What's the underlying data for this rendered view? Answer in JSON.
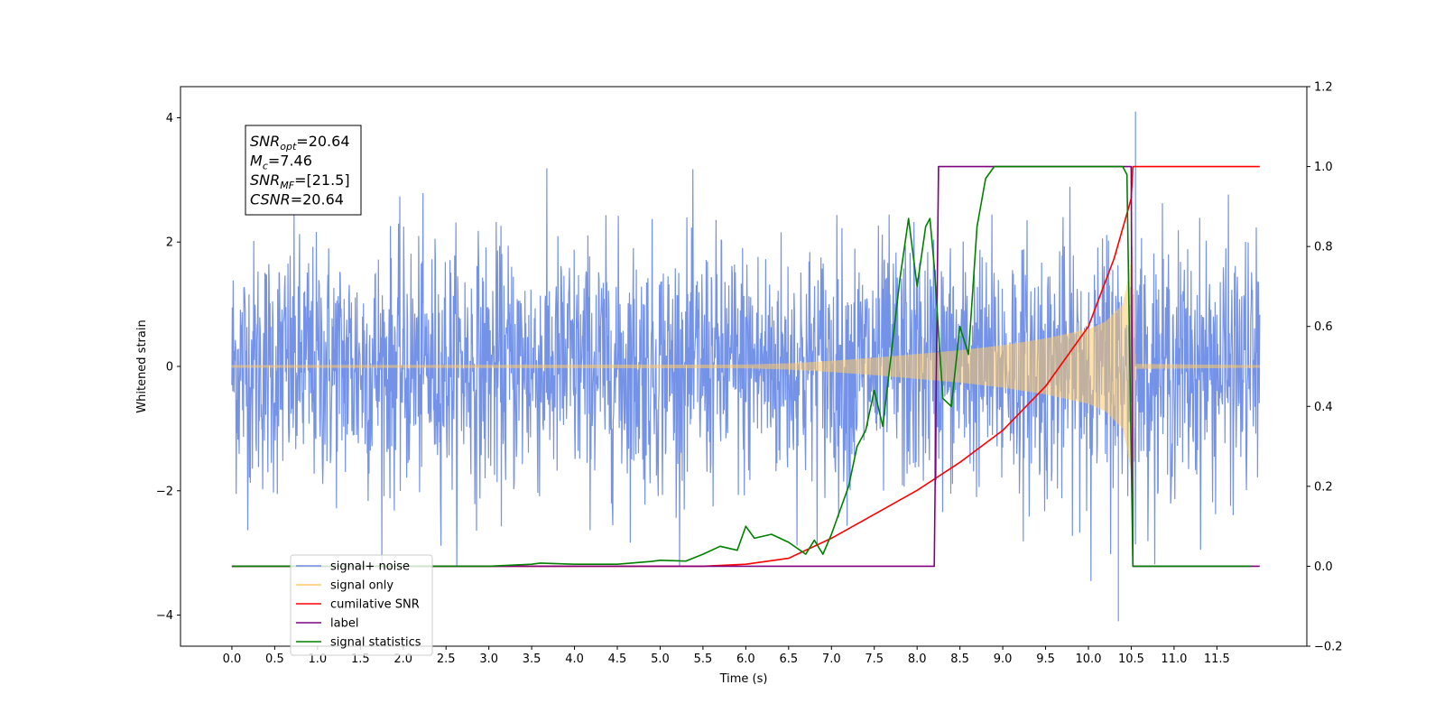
{
  "chart_data": {
    "type": "line",
    "xlabel": "Time (s)",
    "ylabel": "Whitened strain",
    "ylabel_right": "",
    "xlim": [
      -0.6,
      12.55
    ],
    "ylim": [
      -4.5,
      4.5
    ],
    "ylim_right": [
      -0.2,
      1.2
    ],
    "x_ticks": [
      0.0,
      0.5,
      1.0,
      1.5,
      2.0,
      2.5,
      3.0,
      3.5,
      4.0,
      4.5,
      5.0,
      5.5,
      6.0,
      6.5,
      7.0,
      7.5,
      8.0,
      8.5,
      9.0,
      9.5,
      10.0,
      10.5,
      11.0,
      11.5
    ],
    "x_tick_labels": [
      "0.0",
      "0.5",
      "1.0",
      "1.5",
      "2.0",
      "2.5",
      "3.0",
      "3.5",
      "4.0",
      "4.5",
      "5.0",
      "5.5",
      "6.0",
      "6.5",
      "7.0",
      "7.5",
      "8.0",
      "8.5",
      "9.0",
      "9.5",
      "10.0",
      "10.5",
      "11.0",
      "11.5"
    ],
    "y_ticks": [
      -4,
      -2,
      0,
      2,
      4
    ],
    "y_tick_labels": [
      "−4",
      "−2",
      "0",
      "2",
      "4"
    ],
    "y_right_ticks": [
      -0.2,
      0.0,
      0.2,
      0.4,
      0.6,
      0.8,
      1.0,
      1.2
    ],
    "y_right_tick_labels": [
      "−0.2",
      "0.0",
      "0.2",
      "0.4",
      "0.6",
      "0.8",
      "1.0",
      "1.2"
    ],
    "legend_position": "lower-left",
    "legend": [
      {
        "label": "signal+ noise",
        "color": "#6d8ce6"
      },
      {
        "label": "signal only",
        "color": "#ffc966"
      },
      {
        "label": "cumilative SNR",
        "color": "#ff0000"
      },
      {
        "label": "label",
        "color": "#800080"
      },
      {
        "label": "signal statistics",
        "color": "#008000"
      }
    ],
    "info_box": [
      {
        "main": "SNR",
        "sub": "opt",
        "rest": "=20.64"
      },
      {
        "main": "M",
        "sub": "c",
        "rest": "=7.46"
      },
      {
        "main": "SNR",
        "sub": "MF",
        "rest": "=[21.5]"
      },
      {
        "main": "CSNR",
        "sub": "",
        "rest": "=20.64"
      }
    ],
    "series": [
      {
        "name": "signal+ noise",
        "axis": "left",
        "color": "#6d8ce6",
        "x_range": [
          0.0,
          12.0
        ],
        "description_values": {
          "typical_amplitude": 1.5,
          "max": 4.1,
          "min": -4.1,
          "max_at": 10.55,
          "min_at": 10.35
        }
      },
      {
        "name": "signal only",
        "axis": "left",
        "color": "#ffc966",
        "envelope_x": [
          0.0,
          6.0,
          6.5,
          7.0,
          7.5,
          8.0,
          8.5,
          9.0,
          9.5,
          10.0,
          10.2,
          10.4,
          10.45,
          10.5,
          10.52,
          10.55,
          12.0
        ],
        "envelope_y": [
          0.02,
          0.03,
          0.05,
          0.09,
          0.14,
          0.2,
          0.26,
          0.34,
          0.45,
          0.6,
          0.72,
          1.0,
          1.3,
          1.7,
          2.0,
          0.04,
          0.02
        ]
      },
      {
        "name": "cumilative SNR",
        "axis": "right",
        "color": "#ff0000",
        "x": [
          0.0,
          5.0,
          5.5,
          6.0,
          6.5,
          7.0,
          7.5,
          8.0,
          8.5,
          9.0,
          9.5,
          10.0,
          10.3,
          10.5,
          10.52,
          10.55,
          11.0,
          11.5,
          12.0
        ],
        "values": [
          0.0,
          0.0,
          0.0,
          0.005,
          0.02,
          0.07,
          0.13,
          0.19,
          0.26,
          0.34,
          0.45,
          0.6,
          0.77,
          0.92,
          1.0,
          1.0,
          1.0,
          1.0,
          1.0
        ]
      },
      {
        "name": "label",
        "axis": "right",
        "color": "#800080",
        "x": [
          0.0,
          8.2,
          8.25,
          10.5,
          10.52,
          12.0
        ],
        "values": [
          0.0,
          0.0,
          1.0,
          1.0,
          0.0,
          0.0
        ]
      },
      {
        "name": "signal statistics",
        "axis": "right",
        "color": "#008000",
        "x": [
          0.0,
          3.0,
          3.3,
          3.5,
          3.6,
          4.0,
          4.5,
          4.9,
          5.0,
          5.3,
          5.5,
          5.7,
          5.9,
          6.0,
          6.1,
          6.3,
          6.5,
          6.7,
          6.8,
          6.9,
          7.0,
          7.2,
          7.3,
          7.4,
          7.5,
          7.6,
          7.8,
          7.9,
          8.0,
          8.1,
          8.15,
          8.2,
          8.3,
          8.4,
          8.5,
          8.6,
          8.7,
          8.8,
          8.9,
          9.0,
          10.4,
          10.45,
          10.52,
          11.0,
          11.5,
          11.9
        ],
        "values": [
          0.0,
          0.0,
          0.003,
          0.005,
          0.008,
          0.005,
          0.005,
          0.012,
          0.015,
          0.013,
          0.03,
          0.05,
          0.04,
          0.1,
          0.07,
          0.08,
          0.06,
          0.03,
          0.065,
          0.03,
          0.08,
          0.2,
          0.3,
          0.34,
          0.44,
          0.35,
          0.72,
          0.87,
          0.7,
          0.85,
          0.87,
          0.75,
          0.42,
          0.4,
          0.6,
          0.53,
          0.85,
          0.97,
          1.0,
          1.0,
          1.0,
          0.98,
          0.0,
          0.0,
          0.0,
          0.0
        ]
      }
    ]
  }
}
